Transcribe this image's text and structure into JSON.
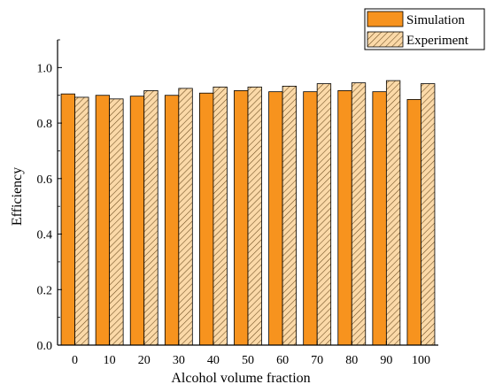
{
  "chart_data": {
    "type": "bar",
    "title": "",
    "xlabel": "Alcohol volume fraction",
    "ylabel": "Efficiency",
    "categories": [
      "0",
      "10",
      "20",
      "30",
      "40",
      "50",
      "60",
      "70",
      "80",
      "90",
      "100"
    ],
    "ylim": [
      0,
      1.1
    ],
    "yticks": [
      "0.0",
      "0.2",
      "0.4",
      "0.6",
      "0.8",
      "1.0"
    ],
    "legend_position": "top-right",
    "grid": false,
    "series": [
      {
        "name": "Simulation",
        "values": [
          0.905,
          0.9,
          0.897,
          0.9,
          0.908,
          0.917,
          0.913,
          0.913,
          0.917,
          0.913,
          0.885
        ],
        "color": "#f7931e",
        "pattern": "solid"
      },
      {
        "name": "Experiment",
        "values": [
          0.893,
          0.887,
          0.917,
          0.925,
          0.93,
          0.93,
          0.933,
          0.942,
          0.945,
          0.953,
          0.942
        ],
        "color": "#fbd9a8",
        "pattern": "diagonal-hatch"
      }
    ]
  }
}
